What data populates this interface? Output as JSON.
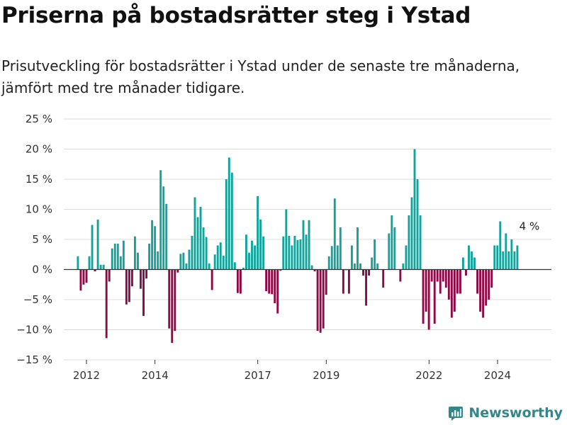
{
  "header": {
    "title": "Priserna på bostadsrätter steg i Ystad",
    "subtitle": "Prisutveckling för bostadsrätter i Ystad under de senaste tre månaderna, jämfört med tre månader tidigare."
  },
  "footer": {
    "brand": "Newsworthy"
  },
  "colors": {
    "positive": "#13a39b",
    "negative": "#8c0a45",
    "grid": "#dddddd",
    "zero": "#333333",
    "brand": "#33878a"
  },
  "chart_data": {
    "type": "bar",
    "yticks": [
      "25 %",
      "20 %",
      "15 %",
      "10 %",
      "5 %",
      "0 %",
      "−5 %",
      "−10 %",
      "−15 %"
    ],
    "ylim": [
      -15,
      25
    ],
    "xticks": [
      {
        "label": "2012",
        "x": 2012.0
      },
      {
        "label": "2014",
        "x": 2014.0
      },
      {
        "label": "2017",
        "x": 2017.0
      },
      {
        "label": "2019",
        "x": 2019.0
      },
      {
        "label": "2022",
        "x": 2022.0
      },
      {
        "label": "2024",
        "x": 2024.0
      }
    ],
    "x_start": 2011.75,
    "x_step": 0.0833,
    "values": [
      2.2,
      -3.5,
      -2.5,
      -2.2,
      2.2,
      7.4,
      -0.3,
      8.3,
      0.8,
      0.8,
      -11.4,
      -2.0,
      3.5,
      4.3,
      4.3,
      2.2,
      4.8,
      -5.8,
      -5.4,
      -2.8,
      5.5,
      2.8,
      -3.2,
      -7.7,
      -1.5,
      4.3,
      8.2,
      7.2,
      3.0,
      16.5,
      13.8,
      10.9,
      -9.8,
      -12.2,
      -10.2,
      -0.5,
      2.6,
      2.8,
      1.0,
      3.3,
      5.6,
      12.0,
      8.7,
      10.4,
      7.0,
      5.4,
      1.0,
      -3.4,
      2.5,
      4.0,
      4.5,
      2.3,
      15.0,
      18.6,
      16.1,
      1.2,
      -3.9,
      -4.0,
      0.3,
      5.8,
      2.8,
      4.8,
      4.0,
      12.2,
      8.3,
      5.5,
      -3.6,
      -4.0,
      -4.1,
      -5.6,
      -7.3,
      -0.2,
      5.5,
      10.0,
      5.6,
      4.0,
      5.6,
      4.9,
      5.0,
      8.2,
      5.8,
      8.2,
      0.7,
      -0.3,
      -10.2,
      -10.5,
      -9.8,
      -4.2,
      2.2,
      3.9,
      11.8,
      4.0,
      7.0,
      -4.0,
      -0.1,
      -4.0,
      4.0,
      1.0,
      7.0,
      1.0,
      -1.0,
      -6.0,
      -1.0,
      2.0,
      5.0,
      1.0,
      0.0,
      -3.0,
      0.0,
      6.0,
      9.0,
      7.0,
      0.0,
      -2.0,
      1.0,
      4.0,
      9.0,
      12.0,
      20.0,
      15.0,
      9.0,
      -9.0,
      -7.0,
      -10.0,
      -2.0,
      -9.0,
      -2.0,
      -4.0,
      -2.0,
      -3.0,
      -5.0,
      -8.0,
      -7.0,
      -4.0,
      -4.0,
      2.0,
      -1.0,
      4.0,
      3.0,
      2.0,
      -4.0,
      -7.0,
      -8.0,
      -6.0,
      -5.0,
      -3.0,
      4.0,
      4.0,
      8.0,
      3.0,
      6.0,
      3.0,
      5.0,
      3.0,
      4.0
    ],
    "last_label": "4 %",
    "grid": true,
    "legend": "none"
  }
}
